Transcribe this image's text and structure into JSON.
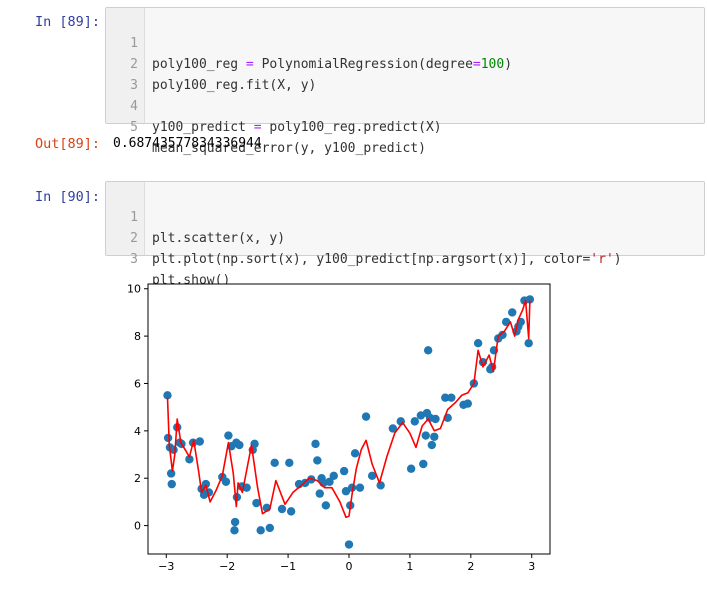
{
  "cells": [
    {
      "prompt": "In  [89]:",
      "lines": [
        {
          "n": "1",
          "code": "poly100_reg = PolynomialRegression(degree=100)"
        },
        {
          "n": "2",
          "code": "poly100_reg.fit(X, y)"
        },
        {
          "n": "3",
          "code": ""
        },
        {
          "n": "4",
          "code": "y100_predict = poly100_reg.predict(X)"
        },
        {
          "n": "5",
          "code": "mean_squared_error(y, y100_predict)"
        }
      ]
    },
    {
      "prompt": "In  [90]:",
      "lines": [
        {
          "n": "1",
          "code": "plt.scatter(x, y)"
        },
        {
          "n": "2",
          "code": "plt.plot(np.sort(x), y100_predict[np.argsort(x)], color='r')"
        },
        {
          "n": "3",
          "code": "plt.show()"
        }
      ]
    }
  ],
  "output": {
    "prompt": "Out[89]:",
    "value": "0.68743577834336944"
  },
  "colors": {
    "scatter": "#1f77b4",
    "line": "#ff0000",
    "in_prompt": "#303F9F",
    "out_prompt": "#D84315"
  },
  "chart_data": {
    "type": "scatter",
    "xlim": [
      -3.3,
      3.3
    ],
    "ylim": [
      -1.2,
      10.2
    ],
    "x_ticks": [
      "−3",
      "−2",
      "−1",
      "0",
      "1",
      "2",
      "3"
    ],
    "y_ticks": [
      "0",
      "2",
      "4",
      "6",
      "8",
      "10"
    ],
    "x_tick_values": [
      -3,
      -2,
      -1,
      0,
      1,
      2,
      3
    ],
    "y_tick_values": [
      0,
      2,
      4,
      6,
      8,
      10
    ],
    "grid": false,
    "series": [
      {
        "kind": "scatter",
        "points": [
          [
            -2.98,
            5.5
          ],
          [
            -2.97,
            3.7
          ],
          [
            -2.94,
            3.3
          ],
          [
            -2.92,
            2.2
          ],
          [
            -2.91,
            1.75
          ],
          [
            -2.88,
            3.2
          ],
          [
            -2.82,
            4.15
          ],
          [
            -2.78,
            3.5
          ],
          [
            -2.75,
            3.45
          ],
          [
            -2.62,
            2.8
          ],
          [
            -2.56,
            3.5
          ],
          [
            -2.45,
            3.55
          ],
          [
            -2.42,
            1.55
          ],
          [
            -2.38,
            1.3
          ],
          [
            -2.35,
            1.75
          ],
          [
            -2.3,
            1.4
          ],
          [
            -2.08,
            2.05
          ],
          [
            -2.02,
            1.85
          ],
          [
            -1.98,
            3.8
          ],
          [
            -1.93,
            3.35
          ],
          [
            -1.88,
            -0.2
          ],
          [
            -1.87,
            0.15
          ],
          [
            -1.85,
            3.5
          ],
          [
            -1.84,
            1.2
          ],
          [
            -1.8,
            3.4
          ],
          [
            -1.76,
            1.65
          ],
          [
            -1.68,
            1.6
          ],
          [
            -1.58,
            3.2
          ],
          [
            -1.55,
            3.45
          ],
          [
            -1.52,
            0.95
          ],
          [
            -1.45,
            -0.2
          ],
          [
            -1.35,
            0.75
          ],
          [
            -1.3,
            -0.1
          ],
          [
            -1.22,
            2.65
          ],
          [
            -1.1,
            0.7
          ],
          [
            -0.98,
            2.65
          ],
          [
            -0.95,
            0.6
          ],
          [
            -0.82,
            1.75
          ],
          [
            -0.72,
            1.8
          ],
          [
            -0.62,
            1.95
          ],
          [
            -0.55,
            3.45
          ],
          [
            -0.52,
            2.75
          ],
          [
            -0.48,
            1.35
          ],
          [
            -0.45,
            2.0
          ],
          [
            -0.42,
            1.8
          ],
          [
            -0.38,
            0.85
          ],
          [
            -0.32,
            1.85
          ],
          [
            -0.25,
            2.1
          ],
          [
            -0.08,
            2.3
          ],
          [
            -0.05,
            1.45
          ],
          [
            0.0,
            -0.8
          ],
          [
            0.02,
            0.85
          ],
          [
            0.05,
            1.6
          ],
          [
            0.1,
            3.05
          ],
          [
            0.18,
            1.6
          ],
          [
            0.28,
            4.6
          ],
          [
            0.38,
            2.1
          ],
          [
            0.52,
            1.7
          ],
          [
            0.72,
            4.1
          ],
          [
            0.85,
            4.4
          ],
          [
            1.02,
            2.4
          ],
          [
            1.08,
            4.4
          ],
          [
            1.18,
            4.65
          ],
          [
            1.22,
            2.6
          ],
          [
            1.26,
            3.8
          ],
          [
            1.28,
            4.75
          ],
          [
            1.3,
            7.4
          ],
          [
            1.33,
            4.55
          ],
          [
            1.36,
            3.4
          ],
          [
            1.4,
            3.75
          ],
          [
            1.42,
            4.5
          ],
          [
            1.58,
            5.4
          ],
          [
            1.62,
            4.55
          ],
          [
            1.68,
            5.4
          ],
          [
            1.88,
            5.1
          ],
          [
            1.95,
            5.15
          ],
          [
            2.05,
            6.0
          ],
          [
            2.12,
            7.7
          ],
          [
            2.2,
            6.9
          ],
          [
            2.32,
            6.6
          ],
          [
            2.35,
            6.7
          ],
          [
            2.38,
            7.4
          ],
          [
            2.45,
            7.9
          ],
          [
            2.52,
            8.05
          ],
          [
            2.58,
            8.6
          ],
          [
            2.68,
            9.0
          ],
          [
            2.75,
            8.2
          ],
          [
            2.78,
            8.4
          ],
          [
            2.82,
            8.6
          ],
          [
            2.88,
            9.5
          ],
          [
            2.95,
            7.7
          ],
          [
            2.97,
            9.55
          ]
        ]
      },
      {
        "kind": "line",
        "points": [
          [
            -2.98,
            5.4
          ],
          [
            -2.95,
            3.4
          ],
          [
            -2.9,
            2.3
          ],
          [
            -2.86,
            3.0
          ],
          [
            -2.82,
            4.5
          ],
          [
            -2.76,
            3.5
          ],
          [
            -2.7,
            3.25
          ],
          [
            -2.62,
            2.9
          ],
          [
            -2.55,
            3.6
          ],
          [
            -2.47,
            2.3
          ],
          [
            -2.42,
            1.4
          ],
          [
            -2.35,
            1.7
          ],
          [
            -2.28,
            1.0
          ],
          [
            -2.18,
            1.5
          ],
          [
            -2.08,
            2.1
          ],
          [
            -1.98,
            3.5
          ],
          [
            -1.9,
            2.2
          ],
          [
            -1.85,
            0.8
          ],
          [
            -1.82,
            1.8
          ],
          [
            -1.75,
            1.4
          ],
          [
            -1.6,
            3.4
          ],
          [
            -1.5,
            1.6
          ],
          [
            -1.42,
            0.5
          ],
          [
            -1.3,
            0.7
          ],
          [
            -1.2,
            1.9
          ],
          [
            -1.05,
            0.9
          ],
          [
            -0.92,
            1.4
          ],
          [
            -0.78,
            1.7
          ],
          [
            -0.65,
            2.0
          ],
          [
            -0.52,
            1.9
          ],
          [
            -0.4,
            1.6
          ],
          [
            -0.28,
            1.6
          ],
          [
            -0.15,
            1.0
          ],
          [
            -0.05,
            0.35
          ],
          [
            0.0,
            0.4
          ],
          [
            0.05,
            1.3
          ],
          [
            0.12,
            2.4
          ],
          [
            0.2,
            3.2
          ],
          [
            0.28,
            3.6
          ],
          [
            0.38,
            2.6
          ],
          [
            0.5,
            1.8
          ],
          [
            0.62,
            2.9
          ],
          [
            0.75,
            3.9
          ],
          [
            0.88,
            4.35
          ],
          [
            1.0,
            3.9
          ],
          [
            1.1,
            3.3
          ],
          [
            1.2,
            4.2
          ],
          [
            1.3,
            4.5
          ],
          [
            1.4,
            4.0
          ],
          [
            1.5,
            4.1
          ],
          [
            1.62,
            4.9
          ],
          [
            1.75,
            5.2
          ],
          [
            1.85,
            5.5
          ],
          [
            1.95,
            5.6
          ],
          [
            2.05,
            6.0
          ],
          [
            2.12,
            7.4
          ],
          [
            2.2,
            6.7
          ],
          [
            2.3,
            7.2
          ],
          [
            2.37,
            6.5
          ],
          [
            2.45,
            8.0
          ],
          [
            2.55,
            8.2
          ],
          [
            2.65,
            8.6
          ],
          [
            2.72,
            8.0
          ],
          [
            2.78,
            8.7
          ],
          [
            2.85,
            9.1
          ],
          [
            2.9,
            9.5
          ],
          [
            2.95,
            7.9
          ],
          [
            2.97,
            9.5
          ]
        ]
      }
    ]
  }
}
